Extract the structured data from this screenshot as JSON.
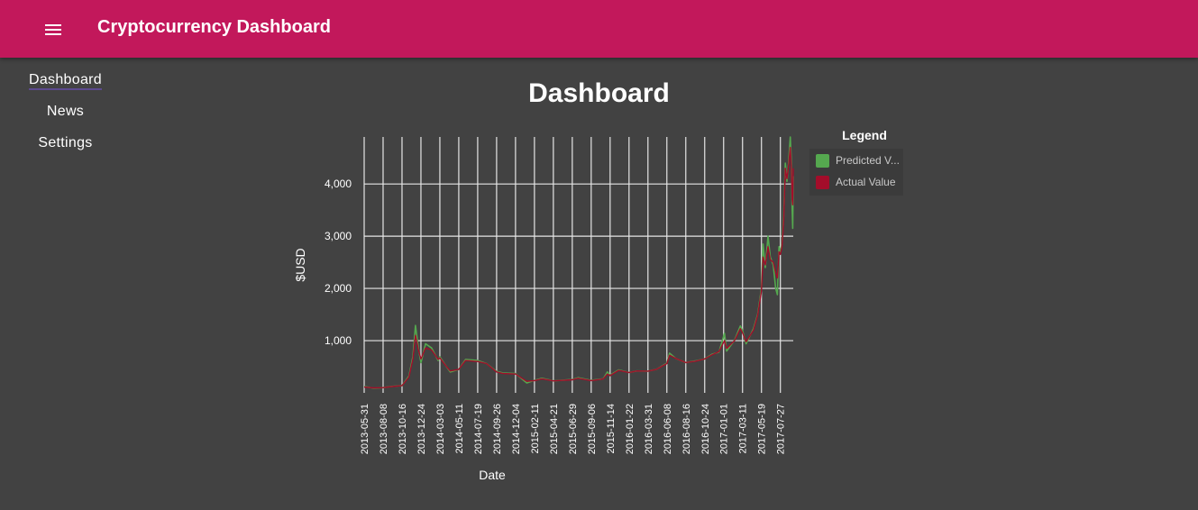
{
  "app": {
    "title": "Cryptocurrency Dashboard"
  },
  "icons": {
    "menu": "menu-icon"
  },
  "colors": {
    "toolbar": "#c2185b",
    "background": "#424242",
    "predicted": "#55a84f",
    "actual": "#a30d2a",
    "grid": "#e6e6e6"
  },
  "nav": {
    "items": [
      {
        "label": "Dashboard",
        "active": true
      },
      {
        "label": "News",
        "active": false
      },
      {
        "label": "Settings",
        "active": false
      }
    ]
  },
  "page": {
    "title": "Dashboard"
  },
  "legend": {
    "title": "Legend",
    "items": [
      {
        "label": "Predicted V...",
        "color": "#55a84f"
      },
      {
        "label": "Actual Value",
        "color": "#a30d2a"
      }
    ]
  },
  "chart_data": {
    "type": "line",
    "title": "",
    "xlabel": "Date",
    "ylabel": "$USD",
    "ylim": [
      0,
      4900
    ],
    "yticks": [
      1000,
      2000,
      3000,
      4000
    ],
    "ytick_labels": [
      "1,000",
      "2,000",
      "3,000",
      "4,000"
    ],
    "xlim": [
      "2013-05-31",
      "2017-09-12"
    ],
    "xticks": [
      "2013-05-31",
      "2013-08-08",
      "2013-10-16",
      "2013-12-24",
      "2014-03-03",
      "2014-05-11",
      "2014-07-19",
      "2014-09-26",
      "2014-12-04",
      "2015-02-11",
      "2015-04-21",
      "2015-06-29",
      "2015-09-06",
      "2015-11-14",
      "2016-01-22",
      "2016-03-31",
      "2016-06-08",
      "2016-08-16",
      "2016-10-24",
      "2017-01-01",
      "2017-03-11",
      "2017-05-19",
      "2017-07-27"
    ],
    "grid": true,
    "legend_position": "right",
    "series": [
      {
        "name": "Predicted Value",
        "color": "#55a84f",
        "points": [
          [
            "2013-05-31",
            120
          ],
          [
            "2013-07-05",
            90
          ],
          [
            "2013-08-08",
            100
          ],
          [
            "2013-09-10",
            125
          ],
          [
            "2013-10-16",
            140
          ],
          [
            "2013-11-10",
            320
          ],
          [
            "2013-11-25",
            700
          ],
          [
            "2013-12-04",
            1290
          ],
          [
            "2013-12-15",
            850
          ],
          [
            "2013-12-24",
            580
          ],
          [
            "2014-01-10",
            940
          ],
          [
            "2014-02-01",
            860
          ],
          [
            "2014-02-25",
            620
          ],
          [
            "2014-03-03",
            690
          ],
          [
            "2014-03-25",
            520
          ],
          [
            "2014-04-10",
            400
          ],
          [
            "2014-05-11",
            450
          ],
          [
            "2014-06-05",
            640
          ],
          [
            "2014-07-19",
            620
          ],
          [
            "2014-08-20",
            560
          ],
          [
            "2014-09-26",
            410
          ],
          [
            "2014-10-20",
            380
          ],
          [
            "2014-12-04",
            370
          ],
          [
            "2015-01-14",
            190
          ],
          [
            "2015-02-11",
            240
          ],
          [
            "2015-03-10",
            280
          ],
          [
            "2015-04-21",
            230
          ],
          [
            "2015-06-29",
            255
          ],
          [
            "2015-07-20",
            290
          ],
          [
            "2015-09-06",
            240
          ],
          [
            "2015-10-20",
            270
          ],
          [
            "2015-11-04",
            400
          ],
          [
            "2015-11-14",
            340
          ],
          [
            "2015-12-15",
            440
          ],
          [
            "2016-01-22",
            390
          ],
          [
            "2016-02-20",
            420
          ],
          [
            "2016-03-31",
            415
          ],
          [
            "2016-05-01",
            450
          ],
          [
            "2016-06-08",
            570
          ],
          [
            "2016-06-18",
            760
          ],
          [
            "2016-07-10",
            660
          ],
          [
            "2016-08-16",
            580
          ],
          [
            "2016-09-20",
            610
          ],
          [
            "2016-10-24",
            650
          ],
          [
            "2016-11-20",
            740
          ],
          [
            "2016-12-15",
            780
          ],
          [
            "2017-01-04",
            1140
          ],
          [
            "2017-01-12",
            800
          ],
          [
            "2017-02-10",
            1010
          ],
          [
            "2017-03-03",
            1280
          ],
          [
            "2017-03-11",
            1190
          ],
          [
            "2017-03-24",
            940
          ],
          [
            "2017-04-20",
            1230
          ],
          [
            "2017-05-05",
            1500
          ],
          [
            "2017-05-19",
            2000
          ],
          [
            "2017-05-25",
            2850
          ],
          [
            "2017-06-02",
            2400
          ],
          [
            "2017-06-12",
            3000
          ],
          [
            "2017-06-20",
            2600
          ],
          [
            "2017-07-01",
            2450
          ],
          [
            "2017-07-10",
            2000
          ],
          [
            "2017-07-16",
            1880
          ],
          [
            "2017-07-22",
            2800
          ],
          [
            "2017-07-27",
            2700
          ],
          [
            "2017-08-02",
            2850
          ],
          [
            "2017-08-08",
            3400
          ],
          [
            "2017-08-14",
            4400
          ],
          [
            "2017-08-20",
            4050
          ],
          [
            "2017-08-26",
            4400
          ],
          [
            "2017-09-01",
            4900
          ],
          [
            "2017-09-05",
            4400
          ],
          [
            "2017-09-08",
            3500
          ],
          [
            "2017-09-10",
            3150
          ],
          [
            "2017-09-12",
            4150
          ]
        ]
      },
      {
        "name": "Actual Value",
        "color": "#a30d2a",
        "points": [
          [
            "2013-05-31",
            110
          ],
          [
            "2013-07-05",
            95
          ],
          [
            "2013-08-08",
            100
          ],
          [
            "2013-09-10",
            120
          ],
          [
            "2013-10-16",
            140
          ],
          [
            "2013-11-10",
            300
          ],
          [
            "2013-11-25",
            650
          ],
          [
            "2013-12-04",
            1100
          ],
          [
            "2013-12-15",
            820
          ],
          [
            "2013-12-24",
            650
          ],
          [
            "2014-01-10",
            860
          ],
          [
            "2014-02-01",
            820
          ],
          [
            "2014-02-25",
            640
          ],
          [
            "2014-03-03",
            670
          ],
          [
            "2014-03-25",
            520
          ],
          [
            "2014-04-10",
            420
          ],
          [
            "2014-05-11",
            450
          ],
          [
            "2014-06-05",
            620
          ],
          [
            "2014-07-19",
            600
          ],
          [
            "2014-08-20",
            560
          ],
          [
            "2014-09-26",
            400
          ],
          [
            "2014-10-20",
            370
          ],
          [
            "2014-12-04",
            360
          ],
          [
            "2015-01-14",
            220
          ],
          [
            "2015-02-11",
            235
          ],
          [
            "2015-03-10",
            270
          ],
          [
            "2015-04-21",
            230
          ],
          [
            "2015-06-29",
            250
          ],
          [
            "2015-07-20",
            280
          ],
          [
            "2015-09-06",
            235
          ],
          [
            "2015-10-20",
            265
          ],
          [
            "2015-11-04",
            360
          ],
          [
            "2015-11-14",
            330
          ],
          [
            "2015-12-15",
            430
          ],
          [
            "2016-01-22",
            390
          ],
          [
            "2016-02-20",
            420
          ],
          [
            "2016-03-31",
            415
          ],
          [
            "2016-05-01",
            450
          ],
          [
            "2016-06-08",
            560
          ],
          [
            "2016-06-18",
            720
          ],
          [
            "2016-07-10",
            660
          ],
          [
            "2016-08-16",
            580
          ],
          [
            "2016-09-20",
            605
          ],
          [
            "2016-10-24",
            650
          ],
          [
            "2016-11-20",
            730
          ],
          [
            "2016-12-15",
            790
          ],
          [
            "2017-01-04",
            1000
          ],
          [
            "2017-01-12",
            850
          ],
          [
            "2017-02-10",
            1000
          ],
          [
            "2017-03-03",
            1230
          ],
          [
            "2017-03-11",
            1150
          ],
          [
            "2017-03-24",
            980
          ],
          [
            "2017-04-20",
            1200
          ],
          [
            "2017-05-05",
            1480
          ],
          [
            "2017-05-19",
            1950
          ],
          [
            "2017-05-25",
            2600
          ],
          [
            "2017-06-02",
            2450
          ],
          [
            "2017-06-12",
            2800
          ],
          [
            "2017-06-20",
            2550
          ],
          [
            "2017-07-01",
            2500
          ],
          [
            "2017-07-10",
            2300
          ],
          [
            "2017-07-16",
            2200
          ],
          [
            "2017-07-22",
            2700
          ],
          [
            "2017-07-27",
            2650
          ],
          [
            "2017-08-02",
            2800
          ],
          [
            "2017-08-08",
            3300
          ],
          [
            "2017-08-14",
            4300
          ],
          [
            "2017-08-20",
            4100
          ],
          [
            "2017-08-26",
            4350
          ],
          [
            "2017-09-01",
            4700
          ],
          [
            "2017-09-05",
            4300
          ],
          [
            "2017-09-08",
            3700
          ],
          [
            "2017-09-10",
            3600
          ],
          [
            "2017-09-12",
            4300
          ]
        ]
      }
    ]
  }
}
